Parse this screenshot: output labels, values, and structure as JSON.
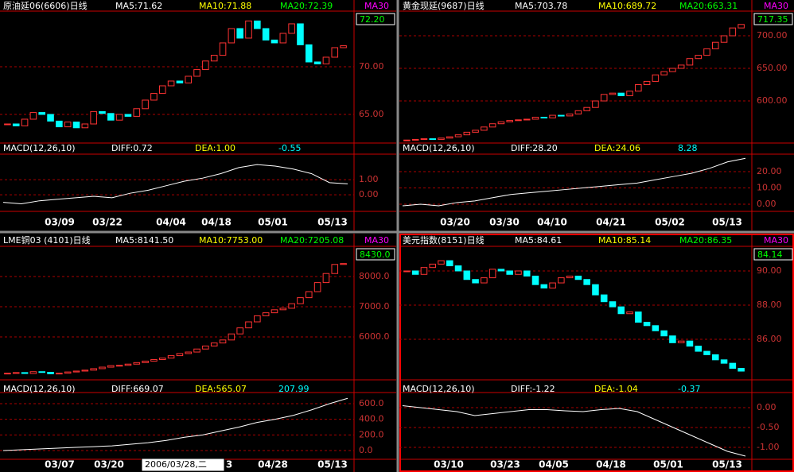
{
  "panels": [
    {
      "title": "原油延06(6606)日线",
      "ma5": "MA5:71.62",
      "ma10": "MA10:71.88",
      "ma20": "MA20:72.39",
      "ma30": "MA30",
      "last": "72.20",
      "ylim": [
        62,
        75.83
      ],
      "yticks": [
        {
          "value": 70,
          "label": "70.00"
        },
        {
          "value": 65,
          "label": "65.00"
        }
      ],
      "closes": [
        64,
        63.8,
        64.5,
        65.2,
        65,
        64.3,
        63.7,
        64.2,
        63.6,
        64,
        65.3,
        65.1,
        64.4,
        65,
        64.8,
        65.6,
        66.5,
        67.2,
        68,
        68.5,
        68.3,
        69,
        69.7,
        70.6,
        71.2,
        72.5,
        74,
        73,
        74.8,
        74,
        72.8,
        72.5,
        73.5,
        74.5,
        72.3,
        70.5,
        70.3,
        71,
        72,
        72.2
      ],
      "macd": {
        "title": "MACD(12,26,10)",
        "diff_label": "DIFF:0.72",
        "dea_label": "DEA:1.00",
        "value_label": "-0.55",
        "ylim": [
          -1.1,
          2.53
        ],
        "yticks": [
          {
            "value": 1,
            "label": "1.00"
          },
          {
            "value": 0,
            "label": "0.00"
          }
        ],
        "diff": [
          -0.5,
          -0.6,
          -0.4,
          -0.3,
          -0.2,
          -0.1,
          -0.2,
          0.1,
          0.3,
          0.6,
          0.9,
          1.1,
          1.4,
          1.8,
          2.0,
          1.9,
          1.7,
          1.4,
          0.8,
          0.72
        ]
      },
      "xlabels": [
        "03/09",
        "03/22",
        "04/04",
        "04/18",
        "05/01",
        "05/13"
      ]
    },
    {
      "title": "黄金现延(9687)日线",
      "ma5": "MA5:703.78",
      "ma10": "MA10:689.72",
      "ma20": "MA20:663.31",
      "ma30": "MA30",
      "last": "717.35",
      "ylim": [
        535.4,
        737.8
      ],
      "yticks": [
        {
          "value": 700,
          "label": "700.00"
        },
        {
          "value": 650,
          "label": "650.00"
        },
        {
          "value": 600,
          "label": "600.00"
        }
      ],
      "closes": [
        540,
        541,
        542,
        541,
        543,
        545,
        548,
        552,
        555,
        560,
        565,
        568,
        570,
        571,
        572,
        575,
        574,
        578,
        577,
        580,
        585,
        590,
        600,
        610,
        612,
        608,
        615,
        625,
        630,
        640,
        645,
        650,
        655,
        665,
        670,
        680,
        690,
        700,
        712,
        717.35
      ],
      "macd": {
        "title": "MACD(12,26,10)",
        "diff_label": "DIFF:28.20",
        "dea_label": "DEA:24.06",
        "value_label": "8.28",
        "ylim": [
          -4.4,
          29.3
        ],
        "yticks": [
          {
            "value": 20,
            "label": "20.00"
          },
          {
            "value": 10,
            "label": "10.00"
          },
          {
            "value": 0,
            "label": "0.00"
          }
        ],
        "diff": [
          -1,
          0,
          -1,
          1,
          2,
          4,
          6,
          7,
          8,
          9,
          10,
          11,
          12,
          13,
          15,
          17,
          19,
          22,
          26,
          28.2
        ]
      },
      "xlabels": [
        "03/20",
        "03/30",
        "04/10",
        "04/21",
        "05/02",
        "05/13"
      ]
    },
    {
      "title": "LME铜03 (4101)日线",
      "ma5": "MA5:8141.50",
      "ma10": "MA10:7753.00",
      "ma20": "MA20:7205.08",
      "ma30": "MA30",
      "last": "8430.0",
      "ylim": [
        4580,
        9000
      ],
      "yticks": [
        {
          "value": 8000,
          "label": "8000.0"
        },
        {
          "value": 7000,
          "label": "7000.0"
        },
        {
          "value": 6000,
          "label": "6000.0"
        }
      ],
      "closes": [
        4800,
        4820,
        4790,
        4850,
        4830,
        4780,
        4800,
        4840,
        4870,
        4900,
        4950,
        5000,
        5050,
        5060,
        5100,
        5150,
        5200,
        5250,
        5300,
        5380,
        5450,
        5500,
        5600,
        5700,
        5800,
        5900,
        6100,
        6300,
        6500,
        6700,
        6800,
        6900,
        6950,
        7100,
        7300,
        7500,
        7800,
        8100,
        8400,
        8430
      ],
      "macd": {
        "title": "MACD(12,26,10)",
        "diff_label": "DIFF:669.07",
        "dea_label": "DEA:565.07",
        "value_label": "207.99",
        "ylim": [
          -112,
          712
        ],
        "yticks": [
          {
            "value": 600,
            "label": "600.0"
          },
          {
            "value": 400,
            "label": "400.0"
          },
          {
            "value": 200,
            "label": "200.0"
          },
          {
            "value": 0,
            "label": "0.0"
          }
        ],
        "diff": [
          0,
          10,
          20,
          30,
          40,
          50,
          60,
          80,
          100,
          130,
          170,
          200,
          250,
          300,
          360,
          400,
          450,
          520,
          600,
          669.07
        ]
      },
      "xlabels": [
        "03/07",
        "03/20",
        "3",
        "04/28",
        "05/13"
      ],
      "tooltip": "2006/03/28,二"
    },
    {
      "title": "美元指数(8151)日线",
      "ma5": "MA5:84.61",
      "ma10": "MA10:85.14",
      "ma20": "MA20:86.35",
      "ma30": "MA30",
      "last": "84.14",
      "ylim": [
        83.63,
        91.44
      ],
      "yticks": [
        {
          "value": 90,
          "label": "90.00"
        },
        {
          "value": 88,
          "label": "88.00"
        },
        {
          "value": 86,
          "label": "86.00"
        }
      ],
      "closes": [
        90,
        89.8,
        90.2,
        90.4,
        90.6,
        90.3,
        90,
        89.5,
        89.3,
        89.6,
        90.1,
        90,
        89.8,
        90,
        89.7,
        89.2,
        89,
        89.3,
        89.6,
        89.7,
        89.5,
        89.2,
        88.6,
        88.2,
        87.9,
        87.5,
        87.6,
        87,
        86.8,
        86.5,
        86.2,
        85.8,
        85.9,
        85.6,
        85.3,
        85.1,
        84.8,
        84.6,
        84.3,
        84.14
      ],
      "macd": {
        "title": "MACD(12,26,10)",
        "diff_label": "DIFF:-1.22",
        "dea_label": "DEA:-1.04",
        "value_label": "-0.37",
        "ylim": [
          -1.3,
          0.32
        ],
        "yticks": [
          {
            "value": 0,
            "label": "0.00"
          },
          {
            "value": -0.5,
            "label": "-0.50"
          },
          {
            "value": -1,
            "label": "-1.00"
          }
        ],
        "diff": [
          0.05,
          0.0,
          -0.05,
          -0.1,
          -0.2,
          -0.15,
          -0.1,
          -0.05,
          -0.05,
          -0.08,
          -0.1,
          -0.05,
          -0.02,
          -0.1,
          -0.3,
          -0.5,
          -0.7,
          -0.9,
          -1.1,
          -1.22
        ]
      },
      "xlabels": [
        "03/10",
        "03/23",
        "04/05",
        "04/18",
        "05/01",
        "05/13"
      ]
    }
  ]
}
